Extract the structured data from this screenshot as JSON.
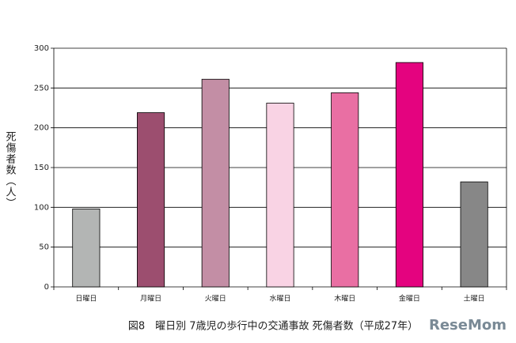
{
  "chart_data": {
    "type": "bar",
    "title": "図8　曜日別 7歳児の歩行中の交通事故 死傷者数（平成27年）",
    "y_label": "死傷者数（人）",
    "categories": [
      "日曜日",
      "月曜日",
      "火曜日",
      "水曜日",
      "木曜日",
      "金曜日",
      "土曜日"
    ],
    "values": [
      98,
      219,
      261,
      231,
      244,
      282,
      132
    ],
    "colors": [
      "#b3b5b4",
      "#9c4e6f",
      "#c38ea5",
      "#f9d3e4",
      "#e96fa3",
      "#e4037f",
      "#878787"
    ],
    "ylim": [
      0,
      300
    ],
    "yticks": [
      0,
      50,
      100,
      150,
      200,
      250,
      300
    ],
    "grid": true,
    "watermark": "ReseMom"
  }
}
